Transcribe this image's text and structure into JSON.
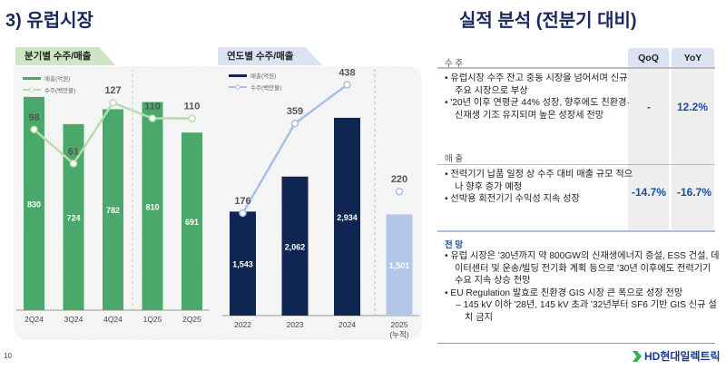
{
  "left_title": "3) 유럽시장",
  "right_title": "실적 분석 (전분기 대비)",
  "page_number": "10",
  "logo_text": "HD현대일렉트릭",
  "colors": {
    "quarterly_bar": "#4aa86a",
    "quarterly_line": "#b9dcae",
    "annual_bar": "#0f2552",
    "annual_bar_cumulative": "#b3c6e7",
    "annual_line": "#a9bfe6",
    "accent_blue": "#1b4f9c"
  },
  "chart_data": [
    {
      "type": "bar",
      "title": "분기별 수주/매출",
      "categories": [
        "2Q24",
        "3Q24",
        "4Q24",
        "1Q25",
        "2Q25"
      ],
      "legend": [
        "매출(억원)",
        "수주(백만불)"
      ],
      "series": [
        {
          "name": "매출(억원)",
          "kind": "bar",
          "values": [
            830,
            724,
            782,
            810,
            691
          ],
          "labels": [
            "830",
            "724",
            "782",
            "810",
            "691"
          ]
        },
        {
          "name": "수주(백만불)",
          "kind": "line",
          "values": [
            98,
            61,
            127,
            110,
            110
          ],
          "labels": [
            "98",
            "61",
            "127",
            "110",
            "110"
          ]
        }
      ],
      "divider_after": "4Q24"
    },
    {
      "type": "bar",
      "title": "연도별 수주/매출",
      "categories": [
        "2022",
        "2023",
        "2024",
        "2025"
      ],
      "category_sub": [
        "",
        "",
        "",
        "(누적)"
      ],
      "legend": [
        "매출(억원)",
        "수주(백만불)"
      ],
      "series": [
        {
          "name": "매출(억원)",
          "kind": "bar",
          "values": [
            1543,
            2062,
            2934,
            1501
          ],
          "labels": [
            "1,543",
            "2,062",
            "2,934",
            "1,501"
          ]
        },
        {
          "name": "수주(백만불)",
          "kind": "line",
          "values": [
            176,
            359,
            438,
            220
          ],
          "labels": [
            "176",
            "359",
            "438",
            "220"
          ]
        }
      ],
      "divider_after": "2024"
    }
  ],
  "analysis": {
    "col_qoq": "QoQ",
    "col_yoy": "YoY",
    "orders": {
      "heading": "수 주",
      "bullets": [
        "• 유럽시장 수주 잔고 중동 시장을 넘어서며 신규 주요 시장으로 부상",
        "• '20년 이후 연평균 44% 성장, 향후에도 친환경·신재생 기조 유지되며 높은 성장세 전망"
      ],
      "qoq": "-",
      "yoy": "12.2%"
    },
    "sales": {
      "heading": "매 출",
      "bullets": [
        "• 전력기기 납품 일정 상 수주 대비 매출 규모 적으나 향후 증가 예정",
        "• 선박용 회전기기 수익성 지속 성장"
      ],
      "qoq": "-14.7%",
      "yoy": "-16.7%"
    },
    "outlook": {
      "heading": "전 망",
      "bullets": [
        "• 유럽 시장은 '30년까지 약 800GW의 신재생에너지 증설, ESS 건설, 데이터센터 및 운송/빌딩 전기화 계획 등으로 '30년 이후에도 전력기기 수요 지속 상승 전망",
        "• EU Regulation 발효로 친환경 GIS 시장 큰 폭으로 성장 전망"
      ],
      "sub_bullet": "– 145 kV 이하 '28년, 145 kV 초과 '32년부터 SF6 기반 GIS 신규 설치 금지"
    }
  }
}
